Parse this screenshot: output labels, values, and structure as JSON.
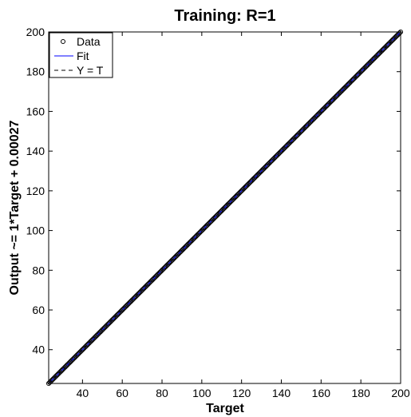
{
  "chart_data": {
    "type": "scatter",
    "title": "Training: R=1",
    "xlabel": "Target",
    "ylabel": "Output ~= 1*Target + 0.00027",
    "xlim": [
      23,
      200
    ],
    "ylim": [
      23,
      200
    ],
    "xticks": [
      40,
      60,
      80,
      100,
      120,
      140,
      160,
      180,
      200
    ],
    "yticks": [
      40,
      60,
      80,
      100,
      120,
      140,
      160,
      180,
      200
    ],
    "grid": false,
    "legend_position": "top-left",
    "series": [
      {
        "name": "Data",
        "kind": "scatter",
        "marker": "circle",
        "color": "#000000",
        "x_range": [
          23,
          200
        ],
        "y_equals_x": true
      },
      {
        "name": "Fit",
        "kind": "line",
        "color": "#0000ff",
        "slope": 1,
        "intercept": 0.00027
      },
      {
        "name": "Y = T",
        "kind": "line",
        "style": "dashed",
        "color": "#000000",
        "slope": 1,
        "intercept": 0
      }
    ]
  }
}
